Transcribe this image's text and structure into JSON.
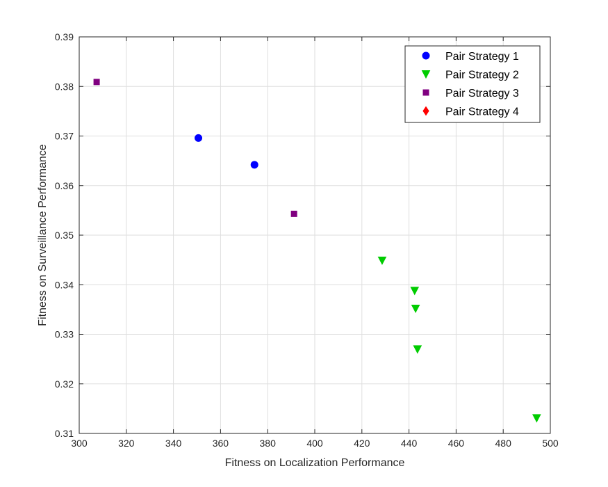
{
  "chart_data": {
    "type": "scatter",
    "title": "",
    "xlabel": "Fitness on Localization Performance",
    "ylabel": "Fitness on Surveillance Performance",
    "xlim": [
      300,
      500
    ],
    "ylim": [
      0.31,
      0.39
    ],
    "xticks": [
      300,
      320,
      340,
      360,
      380,
      400,
      420,
      440,
      460,
      480,
      500
    ],
    "yticks": [
      0.31,
      0.32,
      0.33,
      0.34,
      0.35,
      0.36,
      0.37,
      0.38,
      0.39
    ],
    "xtick_labels": [
      "300",
      "320",
      "340",
      "360",
      "380",
      "400",
      "420",
      "440",
      "460",
      "480",
      "500"
    ],
    "ytick_labels": [
      "0.31",
      "0.32",
      "0.33",
      "0.34",
      "0.35",
      "0.36",
      "0.37",
      "0.38",
      "0.39"
    ],
    "grid": true,
    "legend_position": "top-right",
    "series": [
      {
        "name": "Pair Strategy 1",
        "marker": "circle",
        "color": "#0000ff",
        "points": [
          [
            350.6,
            0.3696
          ],
          [
            374.4,
            0.3642
          ]
        ]
      },
      {
        "name": "Pair Strategy 2",
        "marker": "triangle-down",
        "color": "#00cc00",
        "points": [
          [
            428.6,
            0.3449
          ],
          [
            442.4,
            0.3388
          ],
          [
            442.8,
            0.3352
          ],
          [
            443.6,
            0.327
          ],
          [
            494.2,
            0.3131
          ]
        ]
      },
      {
        "name": "Pair Strategy 3",
        "marker": "square",
        "color": "#800080",
        "points": [
          [
            307.4,
            0.3809
          ],
          [
            391.2,
            0.3543
          ]
        ]
      },
      {
        "name": "Pair Strategy 4",
        "marker": "diamond",
        "color": "#ff0000",
        "points": []
      }
    ]
  }
}
